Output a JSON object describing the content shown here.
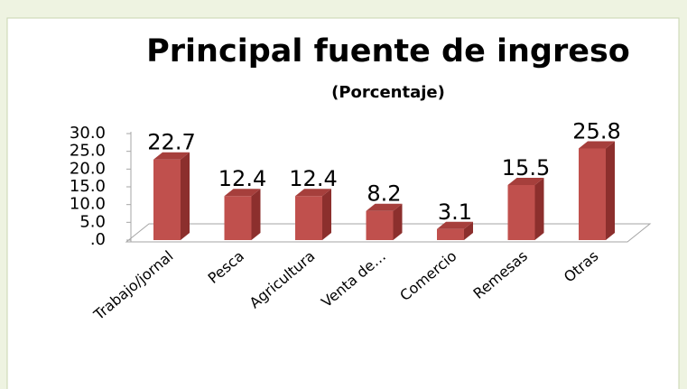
{
  "chart_data": {
    "type": "bar3d",
    "title": "Principal fuente de ingreso",
    "subtitle": "(Porcentaje)",
    "categories": [
      "Trabajo/jornal",
      "Pesca",
      "Agricultura",
      "Venta de…",
      "Comercio",
      "Remesas",
      "Otras"
    ],
    "values": [
      22.7,
      12.4,
      12.4,
      8.2,
      3.1,
      15.5,
      25.8
    ],
    "color": "#c0504d",
    "ylim": [
      0,
      30
    ],
    "yticks": [
      {
        "value": 0,
        "label": ".0"
      },
      {
        "value": 5,
        "label": "5.0"
      },
      {
        "value": 10,
        "label": "10.0"
      },
      {
        "value": 15,
        "label": "15.0"
      },
      {
        "value": 20,
        "label": "20.0"
      },
      {
        "value": 25,
        "label": "25.0"
      },
      {
        "value": 30,
        "label": "30.0"
      }
    ]
  }
}
